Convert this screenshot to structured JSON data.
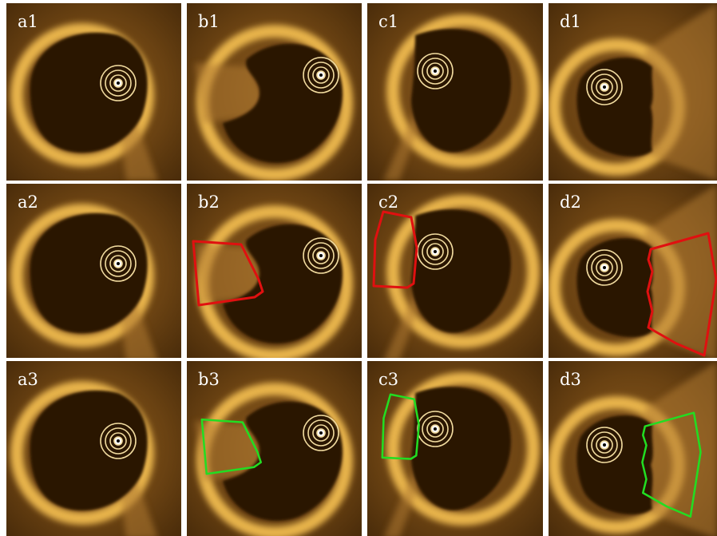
{
  "rows": [
    [
      "a1",
      "b1",
      "c1",
      "d1"
    ],
    [
      "a2",
      "b2",
      "c2",
      "d2"
    ],
    [
      "a3",
      "b3",
      "c3",
      "d3"
    ]
  ]
}
